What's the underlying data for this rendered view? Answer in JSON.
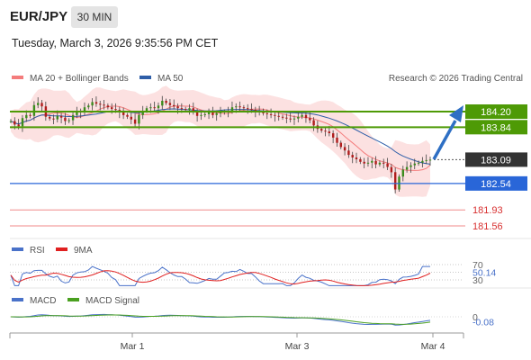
{
  "header": {
    "pair": "EUR/JPY",
    "interval": "30 MIN",
    "datetime": "Tuesday, March 3, 2026 9:35:56 PM CET"
  },
  "legend": {
    "ma20_bb": "MA 20 + Bollinger Bands",
    "ma50": "MA 50",
    "ma20_color": "#f47c7c",
    "ma50_color": "#2e5ea8",
    "copyright": "Research © 2026 Trading Central"
  },
  "rsi_legend": {
    "rsi": "RSI",
    "ma9": "9MA",
    "rsi_color": "#4a72c9",
    "ma9_color": "#e02020"
  },
  "macd_legend": {
    "macd": "MACD",
    "signal": "MACD Signal",
    "macd_color": "#4a72c9",
    "signal_color": "#4aa020"
  },
  "chart_data": {
    "type": "line",
    "title": "EUR/JPY 30 MIN",
    "x_ticks": [
      "Mar 1",
      "Mar 3",
      "Mar 4"
    ],
    "y_range": [
      181.3,
      184.5
    ],
    "levels": {
      "resistance": [
        184.2,
        183.84
      ],
      "current": 183.09,
      "support": [
        182.54,
        181.93,
        181.56
      ]
    },
    "level_colors": {
      "resistance": "#4e9a06",
      "current": "#333333",
      "pivot": "#2966d8",
      "support": "#d83030"
    },
    "price_series": [
      183.98,
      183.9,
      183.86,
      184.05,
      184.12,
      184.1,
      184.35,
      184.4,
      184.32,
      184.08,
      184.04,
      184.02,
      184.1,
      184.06,
      183.98,
      184.0,
      184.12,
      184.18,
      184.2,
      184.3,
      184.34,
      184.42,
      184.38,
      184.36,
      184.34,
      184.3,
      184.26,
      184.24,
      184.18,
      184.12,
      184.08,
      184.02,
      183.92,
      184.12,
      184.22,
      184.28,
      184.3,
      184.28,
      184.34,
      184.45,
      184.4,
      184.35,
      184.32,
      184.28,
      184.26,
      184.24,
      184.28,
      184.2,
      184.1,
      184.12,
      184.14,
      184.18,
      184.12,
      184.16,
      184.2,
      184.18,
      184.22,
      184.3,
      184.32,
      184.3,
      184.28,
      184.26,
      184.24,
      184.2,
      184.22,
      184.16,
      184.14,
      184.12,
      184.1,
      184.08,
      184.06,
      184.04,
      184.02,
      184.04,
      184.08,
      184.12,
      184.05,
      184.0,
      183.88,
      183.8,
      183.76,
      183.74,
      183.7,
      183.6,
      183.48,
      183.38,
      183.3,
      183.2,
      183.14,
      183.1,
      183.04,
      183.0,
      183.02,
      183.06,
      182.98,
      183.02,
      183.0,
      182.92,
      182.8,
      182.4,
      182.7,
      182.86,
      182.92,
      182.96,
      183.0,
      183.02,
      183.06,
      183.08,
      183.09
    ],
    "ma50_series_ends": [
      183.95,
      183.25
    ],
    "indicators": {
      "rsi": {
        "value": 50.14,
        "levels": [
          70,
          30
        ]
      },
      "macd": {
        "value": -0.08,
        "zero_label": "0"
      }
    },
    "projection": "up-arrow"
  }
}
